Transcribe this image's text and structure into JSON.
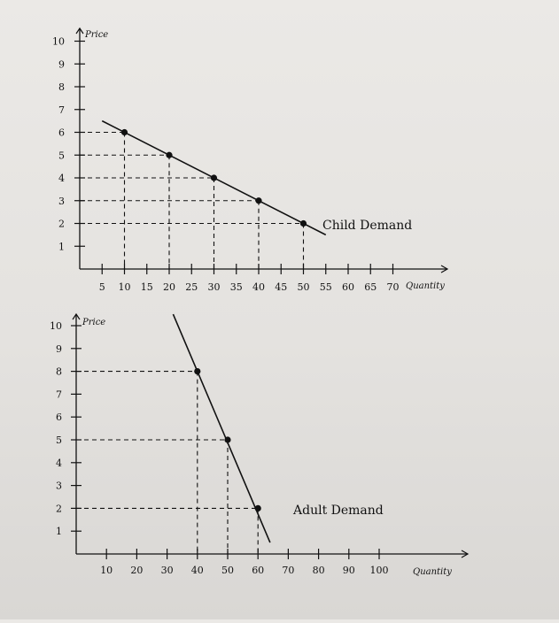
{
  "chart_data": [
    {
      "type": "line",
      "ylabel": "Price",
      "xlabel": "Quantity",
      "series_label": "Child Demand",
      "x_ticks": [
        5,
        10,
        15,
        20,
        25,
        30,
        35,
        40,
        45,
        50,
        55,
        60,
        65,
        70
      ],
      "y_ticks": [
        1,
        2,
        3,
        4,
        5,
        6,
        7,
        8,
        9,
        10
      ],
      "line": {
        "x": [
          5,
          55
        ],
        "y": [
          6.5,
          1.5
        ]
      },
      "points": [
        {
          "x": 10,
          "y": 6
        },
        {
          "x": 20,
          "y": 5
        },
        {
          "x": 30,
          "y": 4
        },
        {
          "x": 40,
          "y": 3
        },
        {
          "x": 50,
          "y": 2
        }
      ],
      "dashed_guides": true,
      "color": "#111111"
    },
    {
      "type": "line",
      "ylabel": "Price",
      "xlabel": "Quantity",
      "series_label": "Adult Demand",
      "x_ticks": [
        10,
        20,
        30,
        40,
        50,
        60,
        70,
        80,
        90,
        100
      ],
      "y_ticks": [
        1,
        2,
        3,
        4,
        5,
        6,
        7,
        8,
        9,
        10
      ],
      "line": {
        "x": [
          32,
          64
        ],
        "y": [
          10.5,
          0.5
        ]
      },
      "points": [
        {
          "x": 40,
          "y": 8
        },
        {
          "x": 50,
          "y": 5
        },
        {
          "x": 60,
          "y": 2
        }
      ],
      "dashed_guides": true,
      "color": "#111111"
    }
  ]
}
